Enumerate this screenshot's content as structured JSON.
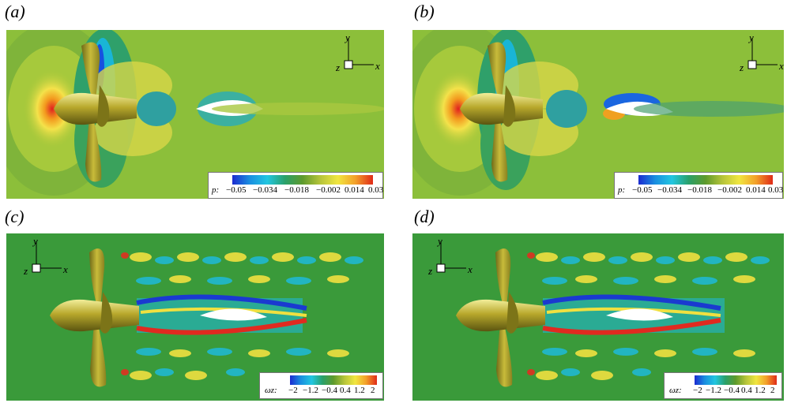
{
  "panels": [
    {
      "label": "(a)",
      "field": "pressure"
    },
    {
      "label": "(b)",
      "field": "pressure"
    },
    {
      "label": "(c)",
      "field": "vorticity"
    },
    {
      "label": "(d)",
      "field": "vorticity"
    }
  ],
  "colorbars": {
    "pressure": {
      "symbol": "p:",
      "ticks": [
        "−0.05",
        "−0.034",
        "−0.018",
        "−0.002",
        "0.014",
        "0.03"
      ]
    },
    "vorticity": {
      "symbol": "ωz:",
      "ticks": [
        "−2",
        "−1.2",
        "−0.4",
        "0.4",
        "1.2",
        "2"
      ]
    }
  },
  "axes": {
    "x": "x",
    "y": "y",
    "z": "z"
  }
}
